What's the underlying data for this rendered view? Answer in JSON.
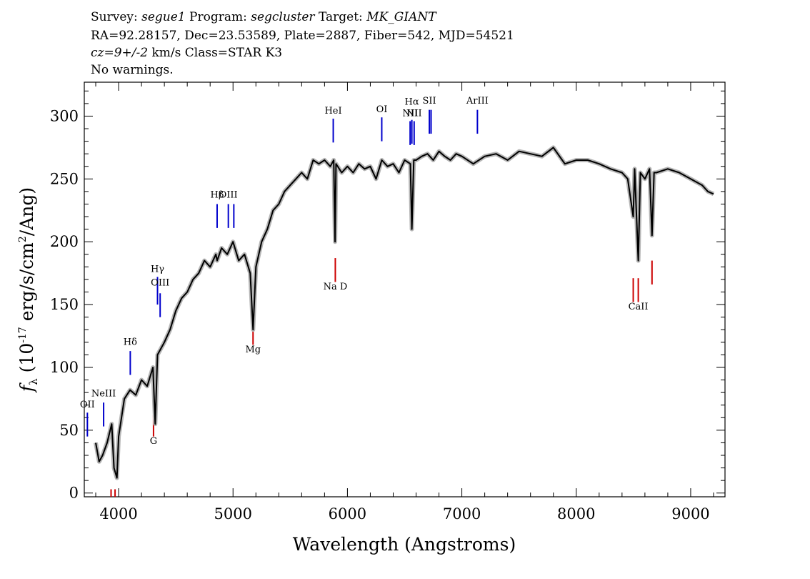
{
  "header": {
    "survey_label": "Survey:",
    "survey": "segue1",
    "program_label": "Program:",
    "program": "segcluster",
    "target_label": "Target:",
    "target": "MK_GIANT",
    "line2": "RA=92.28157, Dec=23.53589, Plate=2887, Fiber=542, MJD=54521",
    "cz_label": "cz=9+/-2",
    "line3_rest": "km/s Class=STAR K3",
    "line4": "No warnings."
  },
  "chart_data": {
    "type": "line",
    "xlabel": "Wavelength (Angstroms)",
    "ylabel_f": "f",
    "ylabel_sub": "λ",
    "ylabel_unit_a": "(10",
    "ylabel_exp1": "-17",
    "ylabel_unit_b": " erg/s/cm",
    "ylabel_exp2": "2",
    "ylabel_unit_c": "/Ang)",
    "xlim": [
      3700,
      9300
    ],
    "ylim": [
      -3,
      327
    ],
    "x_ticks": [
      4000,
      5000,
      6000,
      7000,
      8000,
      9000
    ],
    "y_ticks": [
      0,
      50,
      100,
      150,
      200,
      250,
      300
    ],
    "series": [
      {
        "color": "#000000",
        "x": [
          3800,
          3830,
          3860,
          3900,
          3940,
          3960,
          3985,
          4000,
          4050,
          4100,
          4150,
          4200,
          4250,
          4300,
          4320,
          4340,
          4400,
          4450,
          4500,
          4550,
          4600,
          4650,
          4700,
          4750,
          4800,
          4850,
          4861,
          4900,
          4950,
          5000,
          5050,
          5100,
          5150,
          5175,
          5200,
          5250,
          5300,
          5350,
          5400,
          5450,
          5500,
          5550,
          5600,
          5650,
          5700,
          5750,
          5800,
          5850,
          5880,
          5892,
          5900,
          5950,
          6000,
          6050,
          6100,
          6150,
          6200,
          6250,
          6300,
          6350,
          6400,
          6450,
          6500,
          6550,
          6563,
          6580,
          6600,
          6650,
          6700,
          6750,
          6800,
          6850,
          6900,
          6950,
          7000,
          7100,
          7200,
          7300,
          7400,
          7500,
          7600,
          7700,
          7800,
          7900,
          8000,
          8100,
          8200,
          8300,
          8400,
          8450,
          8498,
          8510,
          8542,
          8560,
          8600,
          8640,
          8662,
          8680,
          8700,
          8800,
          8900,
          9000,
          9100,
          9150,
          9200
        ],
        "y": [
          40,
          25,
          30,
          40,
          55,
          20,
          12,
          45,
          75,
          82,
          78,
          90,
          85,
          100,
          55,
          110,
          120,
          130,
          145,
          155,
          160,
          170,
          175,
          185,
          180,
          190,
          185,
          195,
          190,
          200,
          185,
          190,
          175,
          130,
          180,
          200,
          210,
          225,
          230,
          240,
          245,
          250,
          255,
          250,
          265,
          262,
          265,
          260,
          265,
          200,
          262,
          255,
          260,
          255,
          262,
          258,
          260,
          250,
          265,
          260,
          262,
          255,
          265,
          262,
          210,
          265,
          265,
          268,
          270,
          265,
          272,
          268,
          265,
          270,
          268,
          262,
          268,
          270,
          265,
          272,
          270,
          268,
          275,
          262,
          265,
          265,
          262,
          258,
          255,
          250,
          220,
          258,
          185,
          255,
          250,
          258,
          205,
          255,
          255,
          258,
          255,
          250,
          245,
          240,
          238
        ]
      }
    ],
    "line_markers": [
      {
        "label": "OII",
        "x": 3727,
        "color": "#0000cc",
        "kind": "emission",
        "y0": 45,
        "y1": 64,
        "ly": 68
      },
      {
        "label": "NeIII",
        "x": 3869,
        "color": "#0000cc",
        "kind": "emission",
        "y0": 53,
        "y1": 72,
        "ly": 77
      },
      {
        "label": "Hδ",
        "x": 4102,
        "color": "#0000cc",
        "kind": "emission",
        "y0": 94,
        "y1": 113,
        "ly": 118
      },
      {
        "label": "Hγ",
        "x": 4340,
        "color": "#0000cc",
        "kind": "emission",
        "y0": 150,
        "y1": 172,
        "ly": 176
      },
      {
        "label": "OIII",
        "x": 4363,
        "color": "#0000cc",
        "kind": "emission",
        "y0": 140,
        "y1": 159,
        "ly": 165
      },
      {
        "label": "Hβ",
        "x": 4861,
        "color": "#0000cc",
        "kind": "emission",
        "y0": 211,
        "y1": 230,
        "ly": 235
      },
      {
        "label": "OIII",
        "x": 4959,
        "color": "#0000cc",
        "kind": "emission",
        "y0": 211,
        "y1": 230,
        "ly": 235
      },
      {
        "label": "",
        "x": 5007,
        "color": "#0000cc",
        "kind": "emission",
        "y0": 211,
        "y1": 230,
        "ly": 235
      },
      {
        "label": "HeI",
        "x": 5876,
        "color": "#0000cc",
        "kind": "emission",
        "y0": 279,
        "y1": 298,
        "ly": 302
      },
      {
        "label": "OI",
        "x": 6300,
        "color": "#0000cc",
        "kind": "emission",
        "y0": 280,
        "y1": 299,
        "ly": 303
      },
      {
        "label": "NII",
        "x": 6548,
        "color": "#0000cc",
        "kind": "emission",
        "y0": 277,
        "y1": 296,
        "ly": 300
      },
      {
        "label": "Hα",
        "x": 6563,
        "color": "#0000cc",
        "kind": "emission",
        "y0": 278,
        "y1": 297,
        "ly": 309
      },
      {
        "label": "NII",
        "x": 6583,
        "color": "#0000cc",
        "kind": "emission",
        "y0": 277,
        "y1": 296,
        "ly": 300
      },
      {
        "label": "SII",
        "x": 6716,
        "color": "#0000cc",
        "kind": "emission",
        "y0": 286,
        "y1": 305,
        "ly": 310
      },
      {
        "label": "",
        "x": 6731,
        "color": "#0000cc",
        "kind": "emission",
        "y0": 286,
        "y1": 305,
        "ly": 310
      },
      {
        "label": "ArIII",
        "x": 7136,
        "color": "#0000cc",
        "kind": "emission",
        "y0": 286,
        "y1": 305,
        "ly": 310
      },
      {
        "label": "",
        "x": 3934,
        "color": "#cc0000",
        "kind": "absorption",
        "y0": -3,
        "y1": 3,
        "ly": 0
      },
      {
        "label": "",
        "x": 3969,
        "color": "#cc0000",
        "kind": "absorption",
        "y0": -3,
        "y1": 3,
        "ly": 0
      },
      {
        "label": "G",
        "x": 4305,
        "color": "#cc0000",
        "kind": "absorption",
        "y0": 45,
        "y1": 62,
        "ly": 39
      },
      {
        "label": "Mg",
        "x": 5175,
        "color": "#cc0000",
        "kind": "absorption",
        "y0": 118,
        "y1": 137,
        "ly": 112
      },
      {
        "label": "Na D",
        "x": 5894,
        "color": "#cc0000",
        "kind": "absorption",
        "y0": 168,
        "y1": 187,
        "ly": 162
      },
      {
        "label": "",
        "x": 8498,
        "color": "#cc0000",
        "kind": "absorption",
        "y0": 152,
        "y1": 171,
        "ly": 146
      },
      {
        "label": "CaII",
        "x": 8542,
        "color": "#cc0000",
        "kind": "absorption",
        "y0": 152,
        "y1": 171,
        "ly": 146
      },
      {
        "label": "",
        "x": 8662,
        "color": "#cc0000",
        "kind": "absorption",
        "y0": 166,
        "y1": 185,
        "ly": 160
      }
    ]
  }
}
